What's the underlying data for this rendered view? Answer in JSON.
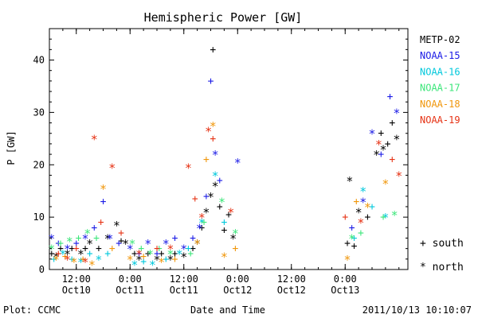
{
  "chart_data": {
    "type": "scatter",
    "title": "Hemispheric Power [GW]",
    "xlabel": "Date and Time",
    "ylabel": "P [GW]",
    "xlim": [
      "2011-10-10T06:00",
      "2011-10-13T14:00"
    ],
    "ylim": [
      0,
      46
    ],
    "yticks": [
      0,
      10,
      20,
      30,
      40
    ],
    "xticks": [
      {
        "t": "2011-10-10T12:00",
        "time": "12:00",
        "date": "Oct10"
      },
      {
        "t": "2011-10-11T00:00",
        "time": "0:00",
        "date": "Oct11"
      },
      {
        "t": "2011-10-11T12:00",
        "time": "12:00",
        "date": "Oct11"
      },
      {
        "t": "2011-10-12T00:00",
        "time": "0:00",
        "date": "Oct12"
      },
      {
        "t": "2011-10-12T12:00",
        "time": "12:00",
        "date": "Oct12"
      },
      {
        "t": "2011-10-13T00:00",
        "time": "0:00",
        "date": "Oct13"
      }
    ],
    "grid": false,
    "legend_position": "right",
    "markers": {
      "south": "+",
      "north": "*"
    },
    "marker_legend": [
      {
        "symbol": "+",
        "label": "south"
      },
      {
        "symbol": "*",
        "label": "north"
      }
    ],
    "series": [
      {
        "name": "METP-02",
        "color": "#000000",
        "points": [
          [
            "2011-10-10T06:30",
            3,
            "+"
          ],
          [
            "2011-10-10T07:30",
            2.5,
            "*"
          ],
          [
            "2011-10-10T08:30",
            4,
            "+"
          ],
          [
            "2011-10-10T10:00",
            3,
            "*"
          ],
          [
            "2011-10-10T11:00",
            4,
            "+"
          ],
          [
            "2011-10-10T13:00",
            3,
            "*"
          ],
          [
            "2011-10-10T14:00",
            4,
            "+"
          ],
          [
            "2011-10-10T15:00",
            5,
            "*"
          ],
          [
            "2011-10-10T17:00",
            4,
            "+"
          ],
          [
            "2011-10-10T19:00",
            6,
            "*"
          ],
          [
            "2011-10-10T21:00",
            8.5,
            "*"
          ],
          [
            "2011-10-10T22:00",
            5.5,
            "+"
          ],
          [
            "2011-10-10T23:00",
            5,
            "*"
          ],
          [
            "2011-10-11T01:00",
            3,
            "+"
          ],
          [
            "2011-10-11T02:00",
            2,
            "*"
          ],
          [
            "2011-10-11T04:00",
            3,
            "+"
          ],
          [
            "2011-10-11T06:00",
            2,
            "*"
          ],
          [
            "2011-10-11T07:00",
            3,
            "+"
          ],
          [
            "2011-10-11T09:00",
            2,
            "*"
          ],
          [
            "2011-10-11T10:00",
            3,
            "+"
          ],
          [
            "2011-10-11T12:00",
            2.5,
            "*"
          ],
          [
            "2011-10-11T14:00",
            4,
            "+"
          ],
          [
            "2011-10-11T15:00",
            5,
            "*"
          ],
          [
            "2011-10-11T16:00",
            8,
            "+"
          ],
          [
            "2011-10-11T17:00",
            11,
            "*"
          ],
          [
            "2011-10-11T18:00",
            14,
            "*"
          ],
          [
            "2011-10-11T18:30",
            42,
            "+"
          ],
          [
            "2011-10-11T19:00",
            16,
            "*"
          ],
          [
            "2011-10-11T20:00",
            12,
            "+"
          ],
          [
            "2011-10-11T21:00",
            7.5,
            "+"
          ],
          [
            "2011-10-11T22:00",
            10.5,
            "+"
          ],
          [
            "2011-10-11T23:00",
            6,
            "*"
          ],
          [
            "2011-10-13T00:30",
            5,
            "+"
          ],
          [
            "2011-10-13T01:00",
            17,
            "*"
          ],
          [
            "2011-10-13T02:00",
            4.5,
            "+"
          ],
          [
            "2011-10-13T03:00",
            11,
            "*"
          ],
          [
            "2011-10-13T05:00",
            10,
            "+"
          ],
          [
            "2011-10-13T07:00",
            22,
            "*"
          ],
          [
            "2011-10-13T08:00",
            26,
            "+"
          ],
          [
            "2011-10-13T08:30",
            23,
            "*"
          ],
          [
            "2011-10-13T09:30",
            24,
            "+"
          ],
          [
            "2011-10-13T10:30",
            28,
            "+"
          ],
          [
            "2011-10-13T11:30",
            25,
            "*"
          ]
        ]
      },
      {
        "name": "NOAA-15",
        "color": "#1a1ae6",
        "points": [
          [
            "2011-10-10T06:30",
            6,
            "*"
          ],
          [
            "2011-10-10T08:00",
            5,
            "+"
          ],
          [
            "2011-10-10T10:00",
            4,
            "*"
          ],
          [
            "2011-10-10T12:00",
            5,
            "+"
          ],
          [
            "2011-10-10T14:00",
            6,
            "*"
          ],
          [
            "2011-10-10T16:00",
            8,
            "+"
          ],
          [
            "2011-10-10T18:00",
            13,
            "+"
          ],
          [
            "2011-10-10T19:30",
            6,
            "*"
          ],
          [
            "2011-10-10T21:30",
            5,
            "+"
          ],
          [
            "2011-10-11T00:00",
            4,
            "*"
          ],
          [
            "2011-10-11T02:00",
            3,
            "+"
          ],
          [
            "2011-10-11T04:00",
            5,
            "*"
          ],
          [
            "2011-10-11T06:00",
            3,
            "+"
          ],
          [
            "2011-10-11T08:00",
            5,
            "*"
          ],
          [
            "2011-10-11T10:00",
            6,
            "+"
          ],
          [
            "2011-10-11T12:00",
            4,
            "*"
          ],
          [
            "2011-10-11T14:00",
            6,
            "+"
          ],
          [
            "2011-10-11T15:30",
            8,
            "*"
          ],
          [
            "2011-10-11T17:00",
            14,
            "+"
          ],
          [
            "2011-10-11T18:00",
            36,
            "+"
          ],
          [
            "2011-10-11T19:00",
            22,
            "*"
          ],
          [
            "2011-10-11T20:00",
            17,
            "+"
          ],
          [
            "2011-10-12T00:00",
            20.5,
            "*"
          ],
          [
            "2011-10-13T01:30",
            8,
            "+"
          ],
          [
            "2011-10-13T04:00",
            13,
            "*"
          ],
          [
            "2011-10-13T06:00",
            26,
            "*"
          ],
          [
            "2011-10-13T08:00",
            22,
            "+"
          ],
          [
            "2011-10-13T10:00",
            33,
            "+"
          ],
          [
            "2011-10-13T11:30",
            30,
            "*"
          ]
        ]
      },
      {
        "name": "NOAA-16",
        "color": "#00c8dc",
        "points": [
          [
            "2011-10-10T07:00",
            2,
            "+"
          ],
          [
            "2011-10-10T09:00",
            3,
            "*"
          ],
          [
            "2011-10-10T11:00",
            2,
            "+"
          ],
          [
            "2011-10-10T13:00",
            1.5,
            "*"
          ],
          [
            "2011-10-10T15:00",
            3,
            "+"
          ],
          [
            "2011-10-10T17:00",
            2,
            "*"
          ],
          [
            "2011-10-10T19:00",
            3,
            "+"
          ],
          [
            "2011-10-11T01:00",
            1,
            "*"
          ],
          [
            "2011-10-11T03:00",
            1.5,
            "+"
          ],
          [
            "2011-10-11T05:00",
            1,
            "*"
          ],
          [
            "2011-10-11T08:00",
            2,
            "+"
          ],
          [
            "2011-10-11T11:00",
            3,
            "*"
          ],
          [
            "2011-10-11T13:00",
            4,
            "+"
          ],
          [
            "2011-10-11T16:00",
            9,
            "*"
          ],
          [
            "2011-10-11T19:00",
            18,
            "*"
          ],
          [
            "2011-10-11T21:00",
            9,
            "+"
          ],
          [
            "2011-10-13T02:00",
            6,
            "+"
          ],
          [
            "2011-10-13T04:00",
            15,
            "*"
          ],
          [
            "2011-10-13T06:00",
            12,
            "+"
          ],
          [
            "2011-10-13T09:00",
            10,
            "*"
          ]
        ]
      },
      {
        "name": "NOAA-17",
        "color": "#3ce67a",
        "points": [
          [
            "2011-10-10T06:30",
            4,
            "*"
          ],
          [
            "2011-10-10T08:30",
            5,
            "+"
          ],
          [
            "2011-10-10T10:30",
            5.5,
            "*"
          ],
          [
            "2011-10-10T12:30",
            6,
            "+"
          ],
          [
            "2011-10-10T14:30",
            7,
            "*"
          ],
          [
            "2011-10-10T16:30",
            6,
            "+"
          ],
          [
            "2011-10-11T00:30",
            5,
            "*"
          ],
          [
            "2011-10-11T02:30",
            4,
            "+"
          ],
          [
            "2011-10-11T04:30",
            3,
            "*"
          ],
          [
            "2011-10-11T06:30",
            4,
            "+"
          ],
          [
            "2011-10-11T09:00",
            3,
            "*"
          ],
          [
            "2011-10-11T13:30",
            3,
            "+"
          ],
          [
            "2011-10-11T16:30",
            9,
            "+"
          ],
          [
            "2011-10-11T20:30",
            13,
            "*"
          ],
          [
            "2011-10-11T23:30",
            7,
            "*"
          ],
          [
            "2011-10-13T01:30",
            6,
            "*"
          ],
          [
            "2011-10-13T03:30",
            7,
            "+"
          ],
          [
            "2011-10-13T08:30",
            10,
            "+"
          ],
          [
            "2011-10-13T11:00",
            10.5,
            "*"
          ]
        ]
      },
      {
        "name": "NOAA-18",
        "color": "#f0960a",
        "points": [
          [
            "2011-10-10T07:30",
            2,
            "*"
          ],
          [
            "2011-10-10T09:30",
            2.5,
            "+"
          ],
          [
            "2011-10-10T11:30",
            1.5,
            "*"
          ],
          [
            "2011-10-10T13:30",
            2,
            "+"
          ],
          [
            "2011-10-10T15:30",
            1,
            "*"
          ],
          [
            "2011-10-10T18:00",
            15.5,
            "*"
          ],
          [
            "2011-10-10T20:00",
            4,
            "+"
          ],
          [
            "2011-10-11T00:00",
            2,
            "*"
          ],
          [
            "2011-10-11T03:00",
            2.5,
            "+"
          ],
          [
            "2011-10-11T07:00",
            1.5,
            "*"
          ],
          [
            "2011-10-11T10:00",
            2,
            "+"
          ],
          [
            "2011-10-11T15:00",
            5,
            "*"
          ],
          [
            "2011-10-11T17:00",
            21,
            "+"
          ],
          [
            "2011-10-11T18:30",
            27.5,
            "*"
          ],
          [
            "2011-10-11T21:00",
            2.5,
            "*"
          ],
          [
            "2011-10-11T23:30",
            4,
            "+"
          ],
          [
            "2011-10-13T00:30",
            2,
            "*"
          ],
          [
            "2011-10-13T02:30",
            13,
            "+"
          ],
          [
            "2011-10-13T05:00",
            12,
            "*"
          ],
          [
            "2011-10-13T09:00",
            16.5,
            "*"
          ]
        ]
      },
      {
        "name": "NOAA-19",
        "color": "#e63214",
        "points": [
          [
            "2011-10-10T08:00",
            3,
            "+"
          ],
          [
            "2011-10-10T10:00",
            2,
            "*"
          ],
          [
            "2011-10-10T12:00",
            4,
            "+"
          ],
          [
            "2011-10-10T14:00",
            1.5,
            "*"
          ],
          [
            "2011-10-10T16:00",
            25,
            "*"
          ],
          [
            "2011-10-10T17:30",
            9,
            "+"
          ],
          [
            "2011-10-10T20:00",
            19.5,
            "*"
          ],
          [
            "2011-10-10T22:00",
            7,
            "+"
          ],
          [
            "2011-10-11T02:00",
            3,
            "*"
          ],
          [
            "2011-10-11T06:00",
            4,
            "+"
          ],
          [
            "2011-10-11T09:00",
            4,
            "*"
          ],
          [
            "2011-10-11T13:00",
            19.5,
            "*"
          ],
          [
            "2011-10-11T14:30",
            13.5,
            "+"
          ],
          [
            "2011-10-11T16:00",
            10,
            "*"
          ],
          [
            "2011-10-11T17:30",
            26.5,
            "*"
          ],
          [
            "2011-10-11T18:30",
            25,
            "+"
          ],
          [
            "2011-10-11T22:30",
            11,
            "*"
          ],
          [
            "2011-10-13T00:00",
            10,
            "+"
          ],
          [
            "2011-10-13T03:30",
            9,
            "*"
          ],
          [
            "2011-10-13T07:30",
            24,
            "*"
          ],
          [
            "2011-10-13T10:30",
            21,
            "+"
          ],
          [
            "2011-10-13T12:00",
            18,
            "*"
          ]
        ]
      }
    ]
  },
  "footer": {
    "left": "Plot: CCMC",
    "right": "2011/10/13 10:10:07"
  }
}
